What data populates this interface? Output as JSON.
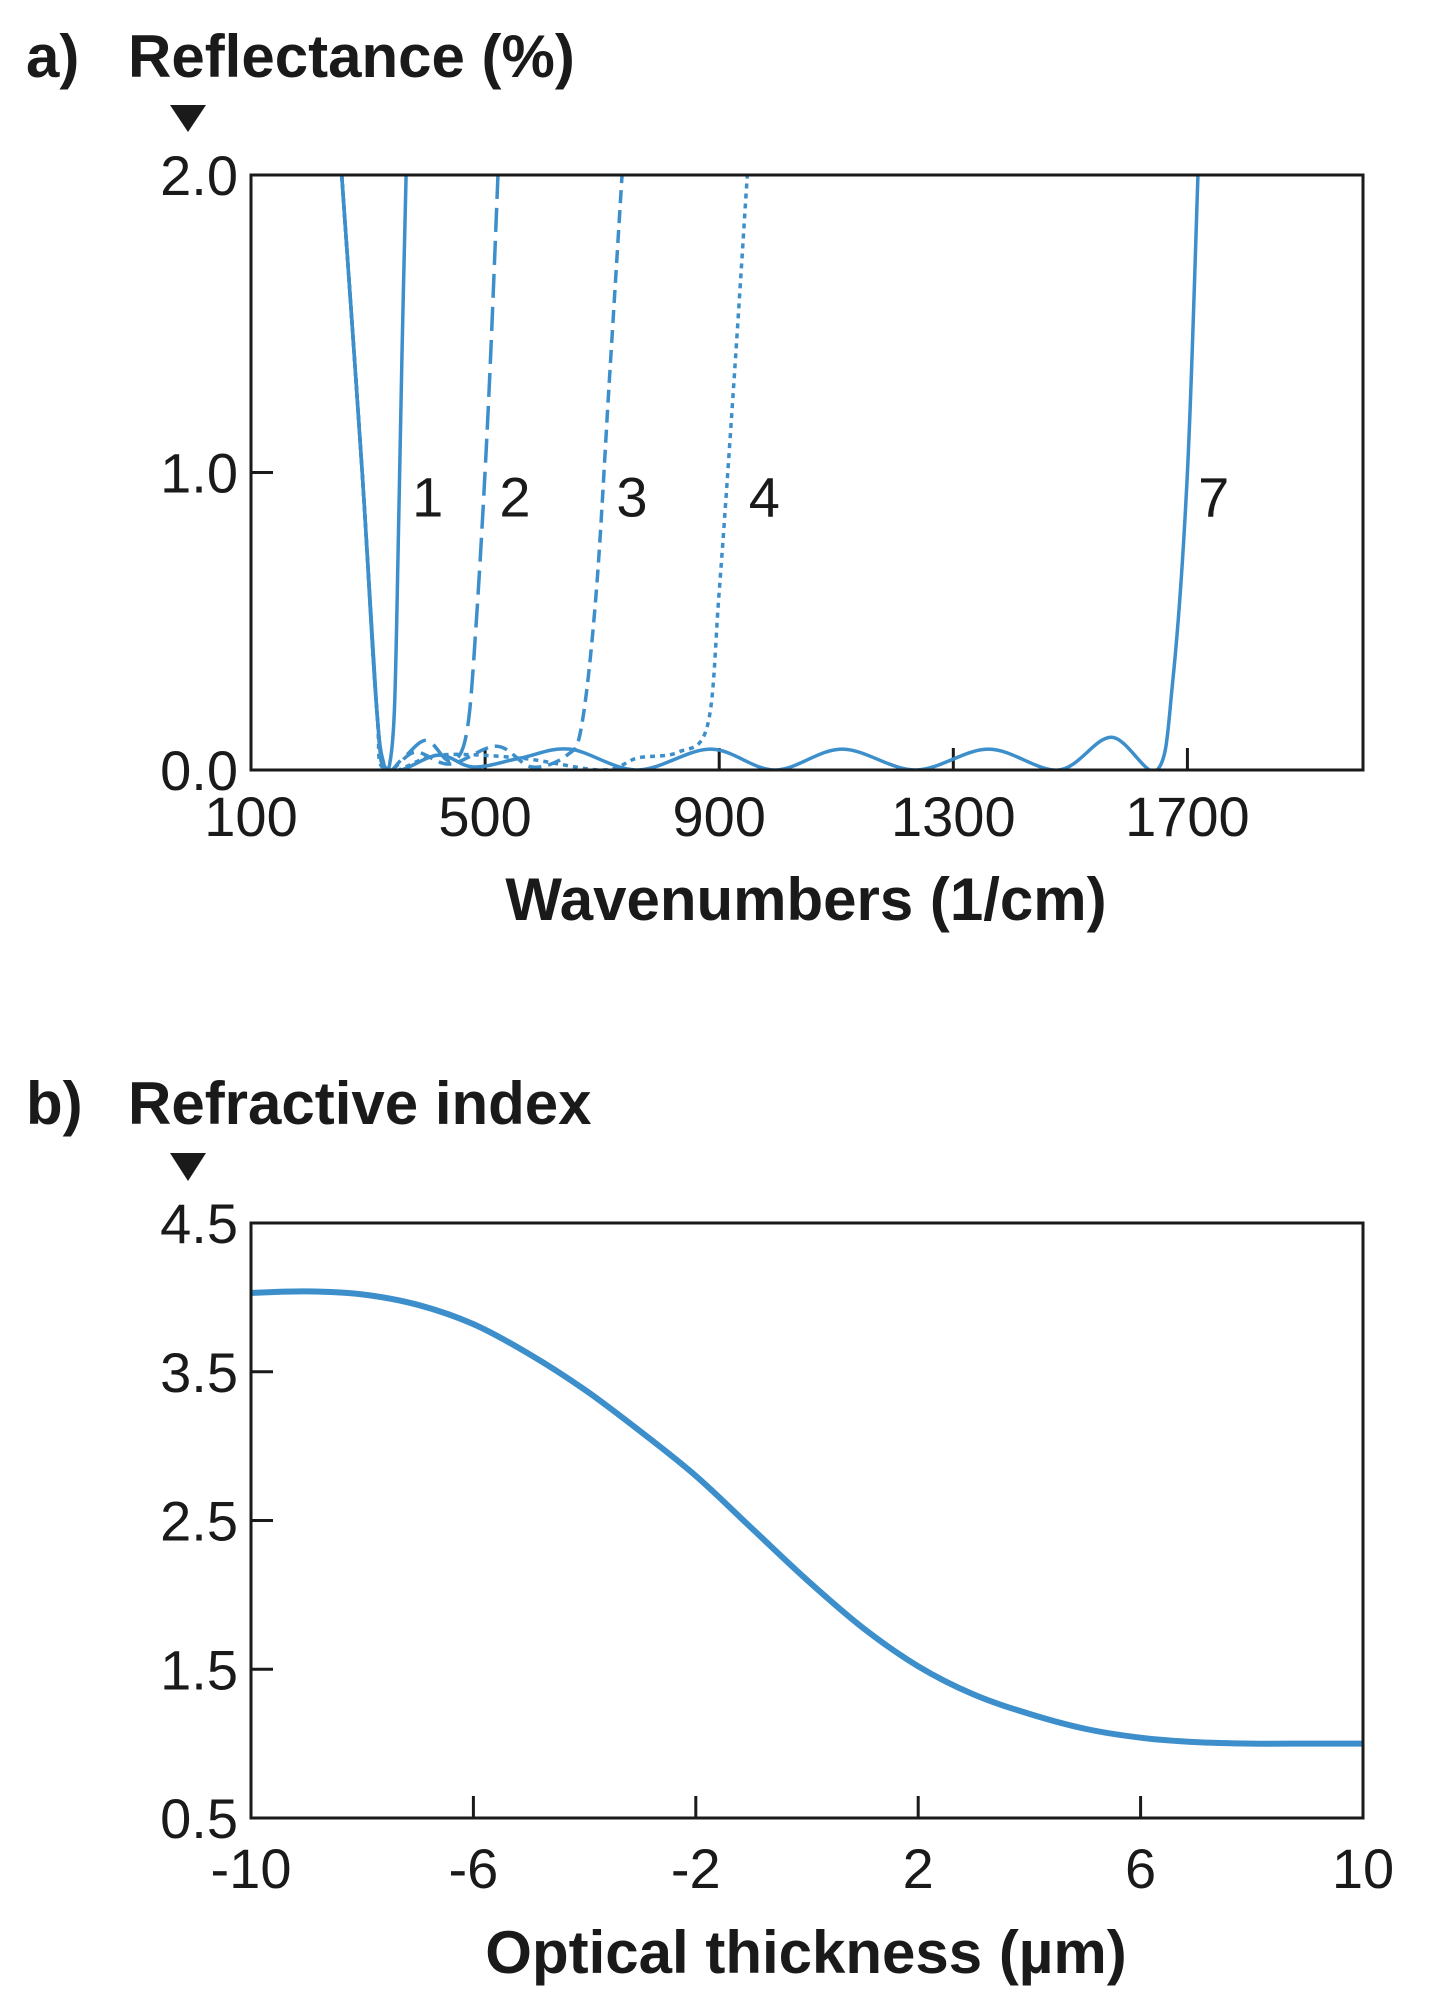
{
  "chart_data": [
    {
      "type": "line",
      "panel_label": "a)",
      "title": "Reflectance (%)",
      "xlabel": "Wavenumbers (1/cm)",
      "ylabel": "Reflectance (%)",
      "xlim": [
        100,
        2000
      ],
      "ylim": [
        0,
        2.0
      ],
      "xticks": [
        100,
        500,
        900,
        1300,
        1700
      ],
      "xtick_labels": [
        "100",
        "500",
        "900",
        "1300",
        "1700"
      ],
      "yticks": [
        0,
        1.0,
        2.0
      ],
      "ytick_labels": [
        "0.0",
        "1.0",
        "2.0"
      ],
      "grid": false,
      "color": "#3d8fcb",
      "series": [
        {
          "name": "1",
          "style": "solid",
          "x": [
            255,
            290,
            315,
            327,
            335,
            345,
            352,
            358,
            365
          ],
          "y": [
            2.0,
            1.0,
            0.2,
            0.02,
            0.0,
            0.2,
            0.8,
            1.4,
            2.0
          ]
        },
        {
          "name": "2",
          "style": "long-dash",
          "x": [
            255,
            290,
            315,
            330,
            360,
            400,
            440,
            468,
            485,
            505,
            522
          ],
          "y": [
            2.0,
            1.0,
            0.2,
            0.0,
            0.04,
            0.1,
            0.03,
            0.12,
            0.5,
            1.2,
            2.0
          ]
        },
        {
          "name": "3",
          "style": "dash",
          "x": [
            255,
            290,
            315,
            330,
            380,
            440,
            520,
            580,
            640,
            665,
            690,
            712,
            734
          ],
          "y": [
            2.0,
            1.0,
            0.2,
            0.0,
            0.06,
            0.02,
            0.08,
            0.01,
            0.05,
            0.15,
            0.6,
            1.3,
            2.0
          ]
        },
        {
          "name": "4",
          "style": "dot",
          "x": [
            255,
            290,
            315,
            330,
            420,
            560,
            700,
            760,
            830,
            880,
            900,
            925,
            948
          ],
          "y": [
            2.0,
            1.0,
            0.2,
            0.0,
            0.05,
            0.04,
            0.0,
            0.04,
            0.06,
            0.15,
            0.6,
            1.3,
            2.0
          ]
        },
        {
          "name": "7",
          "style": "solid",
          "x": [
            255,
            290,
            315,
            335,
            420,
            480,
            560,
            645,
            760,
            885,
            995,
            1110,
            1235,
            1360,
            1480,
            1570,
            1648,
            1675,
            1700,
            1718
          ],
          "y": [
            2.0,
            1.0,
            0.2,
            0.0,
            0.05,
            0.01,
            0.04,
            0.07,
            0.0,
            0.07,
            0.0,
            0.07,
            0.0,
            0.07,
            0.0,
            0.11,
            0.0,
            0.3,
            1.0,
            2.0
          ]
        }
      ],
      "annotations": [
        {
          "text": "1",
          "x": 402,
          "y": 0.92
        },
        {
          "text": "2",
          "x": 551,
          "y": 0.92
        },
        {
          "text": "3",
          "x": 751,
          "y": 0.92
        },
        {
          "text": "4",
          "x": 977,
          "y": 0.92
        },
        {
          "text": "7",
          "x": 1745,
          "y": 0.92
        }
      ]
    },
    {
      "type": "line",
      "panel_label": "b)",
      "title": "Refractive index",
      "xlabel": "Optical thickness (µm)",
      "ylabel": "Refractive index",
      "xlim": [
        -10,
        10
      ],
      "ylim": [
        0.5,
        4.5
      ],
      "xticks": [
        -10,
        -6,
        -2,
        2,
        6,
        10
      ],
      "xtick_labels": [
        "-10",
        "-6",
        "-2",
        "2",
        "6",
        "10"
      ],
      "yticks": [
        0.5,
        1.5,
        2.5,
        3.5,
        4.5
      ],
      "ytick_labels": [
        "0.5",
        "1.5",
        "2.5",
        "3.5",
        "4.5"
      ],
      "grid": false,
      "color": "#3d8fcb",
      "series": [
        {
          "name": "refractive index",
          "style": "solid",
          "x": [
            -10,
            -9,
            -8,
            -7,
            -6,
            -5,
            -4,
            -3,
            -2,
            -1,
            0,
            1,
            2,
            3,
            4,
            5,
            6,
            7,
            8,
            9,
            10
          ],
          "y": [
            4.03,
            4.04,
            4.02,
            3.95,
            3.82,
            3.62,
            3.38,
            3.1,
            2.8,
            2.45,
            2.1,
            1.78,
            1.52,
            1.33,
            1.2,
            1.1,
            1.04,
            1.01,
            1.0,
            1.0,
            1.0
          ]
        }
      ],
      "annotations": []
    }
  ]
}
